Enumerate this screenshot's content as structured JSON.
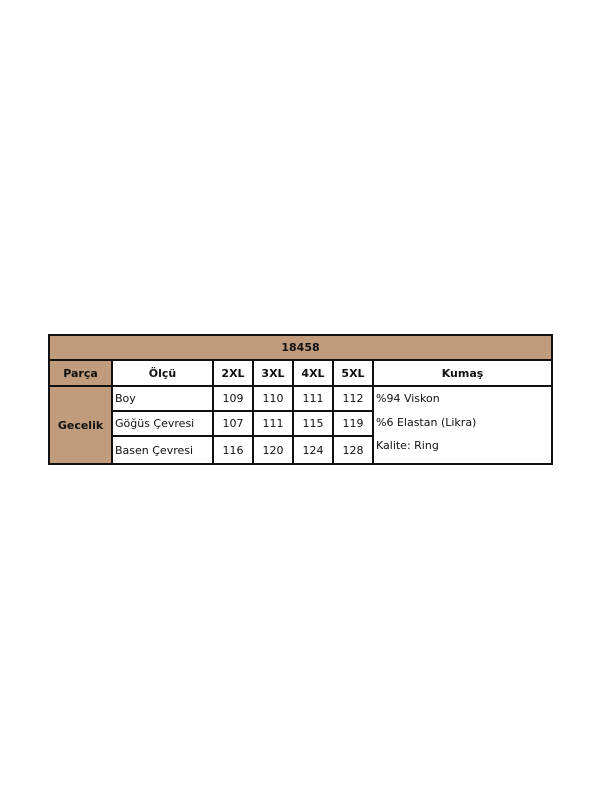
{
  "title": "18458",
  "headers": {
    "part": "Parça",
    "measure": "Ölçü",
    "sizes": [
      "2XL",
      "3XL",
      "4XL",
      "5XL"
    ],
    "fabric": "Kumaş"
  },
  "part_name": "Gecelik",
  "rows": [
    {
      "label": "Boy",
      "values": [
        "109",
        "110",
        "111",
        "112"
      ]
    },
    {
      "label": "Göğüs Çevresi",
      "values": [
        "107",
        "111",
        "115",
        "119"
      ]
    },
    {
      "label": "Basen Çevresi",
      "values": [
        "116",
        "120",
        "124",
        "128"
      ]
    }
  ],
  "fabric_lines": [
    "%94 Viskon",
    "%6 Elastan (Likra)",
    "Kalite: Ring"
  ],
  "colors": {
    "header_bg": "#c09c7d",
    "border": "#111111"
  }
}
